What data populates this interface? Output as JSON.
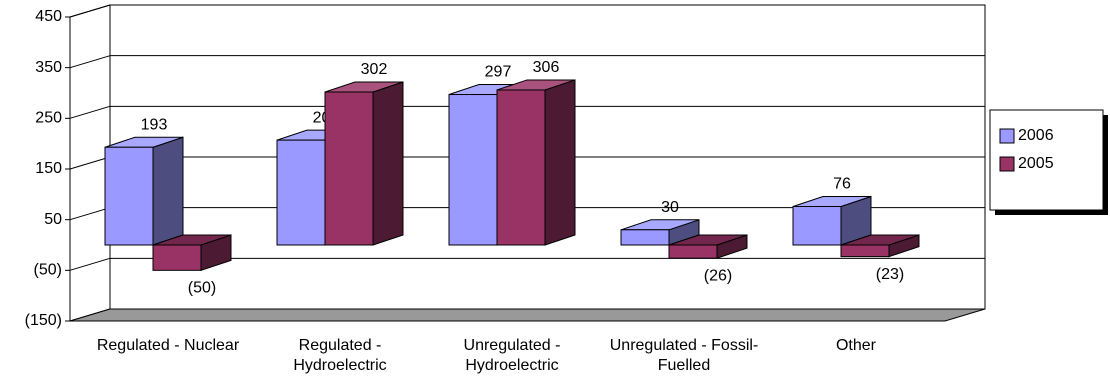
{
  "chart_data": {
    "type": "bar3d",
    "categories": [
      "Regulated - Nuclear",
      "Regulated - Hydroelectric",
      "Unregulated - Hydroelectric",
      "Unregulated - Fossil-Fuelled",
      "Other"
    ],
    "series": [
      {
        "name": "2006",
        "color": "#9999ff",
        "values": [
          193,
          207,
          297,
          30,
          76
        ],
        "value_labels": [
          "193",
          "207",
          "297",
          "30",
          "76"
        ]
      },
      {
        "name": "2005",
        "color": "#993366",
        "values": [
          -50,
          302,
          306,
          -26,
          -23
        ],
        "value_labels": [
          "(50)",
          "302",
          "306",
          "(26)",
          "(23)"
        ]
      }
    ],
    "ylim": [
      -150,
      450
    ],
    "yticks": [
      {
        "value": -150,
        "label": "(150)"
      },
      {
        "value": -50,
        "label": "(50)"
      },
      50,
      150,
      250,
      350,
      450
    ],
    "grid": true,
    "legend": "right"
  }
}
